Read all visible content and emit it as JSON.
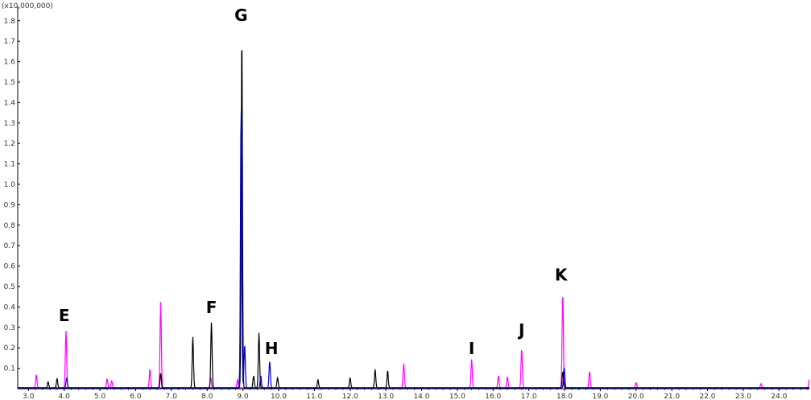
{
  "chart_data": {
    "type": "line",
    "y_scale_label": "(x10,000,000)",
    "xlim": [
      2.7,
      24.85
    ],
    "ylim": [
      0,
      1.87
    ],
    "x_ticks": [
      "3.0",
      "4.0",
      "5.0",
      "6.0",
      "7.0",
      "8.0",
      "9.0",
      "10.0",
      "11.0",
      "12.0",
      "13.0",
      "14.0",
      "15.0",
      "16.0",
      "17.0",
      "18.0",
      "19.0",
      "20.0",
      "21.0",
      "22.0",
      "23.0",
      "24.0"
    ],
    "y_ticks": [
      "0.1",
      "0.2",
      "0.3",
      "0.4",
      "0.5",
      "0.6",
      "0.7",
      "0.8",
      "0.9",
      "1.0",
      "1.1",
      "1.2",
      "1.3",
      "1.4",
      "1.5",
      "1.6",
      "1.7",
      "1.8"
    ],
    "grid": false,
    "legend": "none",
    "series": [
      {
        "color": "#ff00ff",
        "peaks": [
          {
            "x": 3.22,
            "y": 0.065
          },
          {
            "x": 4.05,
            "y": 0.28
          },
          {
            "x": 5.2,
            "y": 0.045
          },
          {
            "x": 5.33,
            "y": 0.035
          },
          {
            "x": 6.4,
            "y": 0.09
          },
          {
            "x": 6.7,
            "y": 0.42
          },
          {
            "x": 8.1,
            "y": 0.05
          },
          {
            "x": 8.85,
            "y": 0.04
          },
          {
            "x": 13.5,
            "y": 0.12
          },
          {
            "x": 15.4,
            "y": 0.14
          },
          {
            "x": 16.15,
            "y": 0.06
          },
          {
            "x": 16.4,
            "y": 0.055
          },
          {
            "x": 16.8,
            "y": 0.19
          },
          {
            "x": 17.95,
            "y": 0.46
          },
          {
            "x": 18.7,
            "y": 0.08
          },
          {
            "x": 20.0,
            "y": 0.025
          },
          {
            "x": 23.5,
            "y": 0.02
          },
          {
            "x": 24.85,
            "y": 0.04
          }
        ]
      },
      {
        "color": "#000000",
        "peaks": [
          {
            "x": 3.55,
            "y": 0.03
          },
          {
            "x": 3.8,
            "y": 0.045
          },
          {
            "x": 6.7,
            "y": 0.07
          },
          {
            "x": 7.6,
            "y": 0.25
          },
          {
            "x": 8.12,
            "y": 0.32
          },
          {
            "x": 8.97,
            "y": 1.73
          },
          {
            "x": 9.3,
            "y": 0.06
          },
          {
            "x": 9.45,
            "y": 0.27
          },
          {
            "x": 9.97,
            "y": 0.05
          },
          {
            "x": 11.1,
            "y": 0.04
          },
          {
            "x": 12.0,
            "y": 0.05
          },
          {
            "x": 12.7,
            "y": 0.09
          },
          {
            "x": 13.05,
            "y": 0.085
          },
          {
            "x": 17.95,
            "y": 0.08
          }
        ]
      },
      {
        "color": "#0000cc",
        "peaks": [
          {
            "x": 8.95,
            "y": 1.37
          },
          {
            "x": 9.05,
            "y": 0.21
          },
          {
            "x": 9.5,
            "y": 0.06
          },
          {
            "x": 9.75,
            "y": 0.13
          },
          {
            "x": 17.99,
            "y": 0.1
          },
          {
            "x": 4.07,
            "y": 0.05
          }
        ]
      }
    ],
    "annotations": [
      {
        "text": "E",
        "x": 4.0,
        "y": 0.33
      },
      {
        "text": "F",
        "x": 8.12,
        "y": 0.37
      },
      {
        "text": "G",
        "x": 8.95,
        "y": 1.8
      },
      {
        "text": "H",
        "x": 9.8,
        "y": 0.17
      },
      {
        "text": "I",
        "x": 15.4,
        "y": 0.17
      },
      {
        "text": "J",
        "x": 16.8,
        "y": 0.26
      },
      {
        "text": "K",
        "x": 17.9,
        "y": 0.53
      }
    ]
  }
}
